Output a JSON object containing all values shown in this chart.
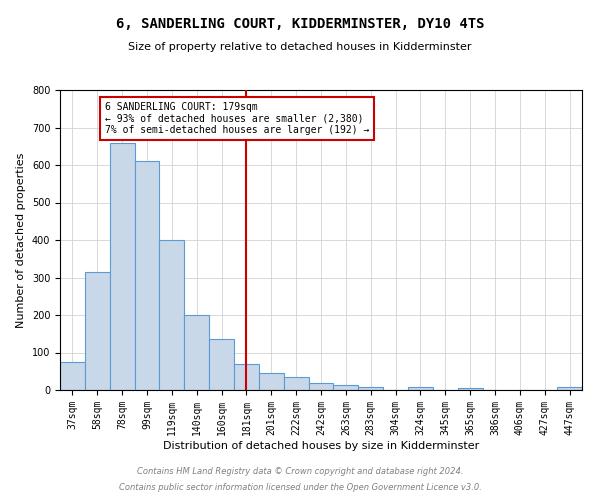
{
  "title": "6, SANDERLING COURT, KIDDERMINSTER, DY10 4TS",
  "subtitle": "Size of property relative to detached houses in Kidderminster",
  "xlabel": "Distribution of detached houses by size in Kidderminster",
  "ylabel": "Number of detached properties",
  "footer1": "Contains HM Land Registry data © Crown copyright and database right 2024.",
  "footer2": "Contains public sector information licensed under the Open Government Licence v3.0.",
  "annotation_title": "6 SANDERLING COURT: 179sqm",
  "annotation_line1": "← 93% of detached houses are smaller (2,380)",
  "annotation_line2": "7% of semi-detached houses are larger (192) →",
  "bar_color": "#c8d8e8",
  "bar_edge_color": "#5b9bd5",
  "vline_color": "#cc0000",
  "annotation_box_color": "#cc0000",
  "categories": [
    "37sqm",
    "58sqm",
    "78sqm",
    "99sqm",
    "119sqm",
    "140sqm",
    "160sqm",
    "181sqm",
    "201sqm",
    "222sqm",
    "242sqm",
    "263sqm",
    "283sqm",
    "304sqm",
    "324sqm",
    "345sqm",
    "365sqm",
    "386sqm",
    "406sqm",
    "427sqm",
    "447sqm"
  ],
  "values": [
    75,
    315,
    660,
    610,
    400,
    200,
    135,
    70,
    45,
    35,
    20,
    13,
    8,
    0,
    7,
    0,
    5,
    0,
    0,
    0,
    7
  ],
  "ylim": [
    0,
    800
  ],
  "yticks": [
    0,
    100,
    200,
    300,
    400,
    500,
    600,
    700,
    800
  ],
  "vline_x_index": 7,
  "title_fontsize": 10,
  "subtitle_fontsize": 8,
  "xlabel_fontsize": 8,
  "ylabel_fontsize": 8,
  "tick_fontsize": 7,
  "annotation_fontsize": 7,
  "footer_fontsize": 6
}
